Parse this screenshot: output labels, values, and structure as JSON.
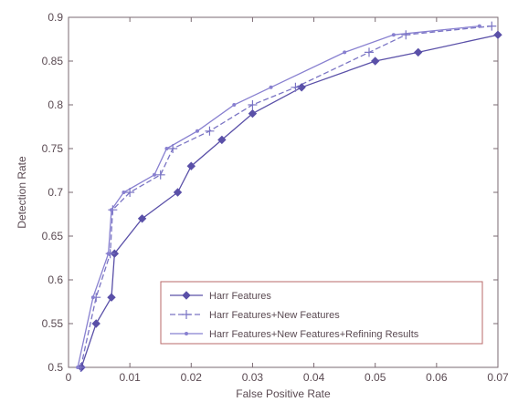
{
  "chart_data": {
    "type": "line",
    "title": "",
    "xlabel": "False Positive Rate",
    "ylabel": "Detection Rate",
    "xlim": [
      0,
      0.07
    ],
    "ylim": [
      0.5,
      0.9
    ],
    "x_ticks": [
      "0",
      "0.01",
      "0.02",
      "0.03",
      "0.04",
      "0.05",
      "0.06",
      "0.07"
    ],
    "y_ticks": [
      "0.5",
      "0.55",
      "0.6",
      "0.65",
      "0.7",
      "0.75",
      "0.8",
      "0.85",
      "0.9"
    ],
    "x_tick_values": [
      0,
      0.01,
      0.02,
      0.03,
      0.04,
      0.05,
      0.06,
      0.07
    ],
    "y_tick_values": [
      0.5,
      0.55,
      0.6,
      0.65,
      0.7,
      0.75,
      0.8,
      0.85,
      0.9
    ],
    "grid": false,
    "legend_position": "bottom-right",
    "series": [
      {
        "name": "Harr Features",
        "marker": "diamond",
        "color": "#5a50a8",
        "points": [
          [
            0.0021,
            0.5
          ],
          [
            0.0045,
            0.55
          ],
          [
            0.007,
            0.58
          ],
          [
            0.0075,
            0.63
          ],
          [
            0.012,
            0.67
          ],
          [
            0.0178,
            0.7
          ],
          [
            0.02,
            0.73
          ],
          [
            0.025,
            0.76
          ],
          [
            0.03,
            0.79
          ],
          [
            0.038,
            0.82
          ],
          [
            0.05,
            0.85
          ],
          [
            0.057,
            0.86
          ],
          [
            0.07,
            0.88
          ]
        ]
      },
      {
        "name": "Harr Features+New Features",
        "marker": "plus",
        "color": "#7a74c4",
        "points": [
          [
            0.002,
            0.5
          ],
          [
            0.0045,
            0.58
          ],
          [
            0.0068,
            0.63
          ],
          [
            0.0072,
            0.68
          ],
          [
            0.01,
            0.7
          ],
          [
            0.015,
            0.72
          ],
          [
            0.017,
            0.75
          ],
          [
            0.023,
            0.77
          ],
          [
            0.03,
            0.8
          ],
          [
            0.037,
            0.82
          ],
          [
            0.049,
            0.86
          ],
          [
            0.055,
            0.88
          ],
          [
            0.069,
            0.89
          ]
        ]
      },
      {
        "name": "Harr Features+New Features+Refining Results",
        "marker": "dot",
        "color": "#8880d0",
        "points": [
          [
            0.0015,
            0.5
          ],
          [
            0.004,
            0.58
          ],
          [
            0.0065,
            0.63
          ],
          [
            0.007,
            0.68
          ],
          [
            0.009,
            0.7
          ],
          [
            0.014,
            0.72
          ],
          [
            0.016,
            0.75
          ],
          [
            0.021,
            0.77
          ],
          [
            0.027,
            0.8
          ],
          [
            0.033,
            0.82
          ],
          [
            0.045,
            0.86
          ],
          [
            0.053,
            0.88
          ],
          [
            0.067,
            0.89
          ]
        ]
      }
    ]
  }
}
